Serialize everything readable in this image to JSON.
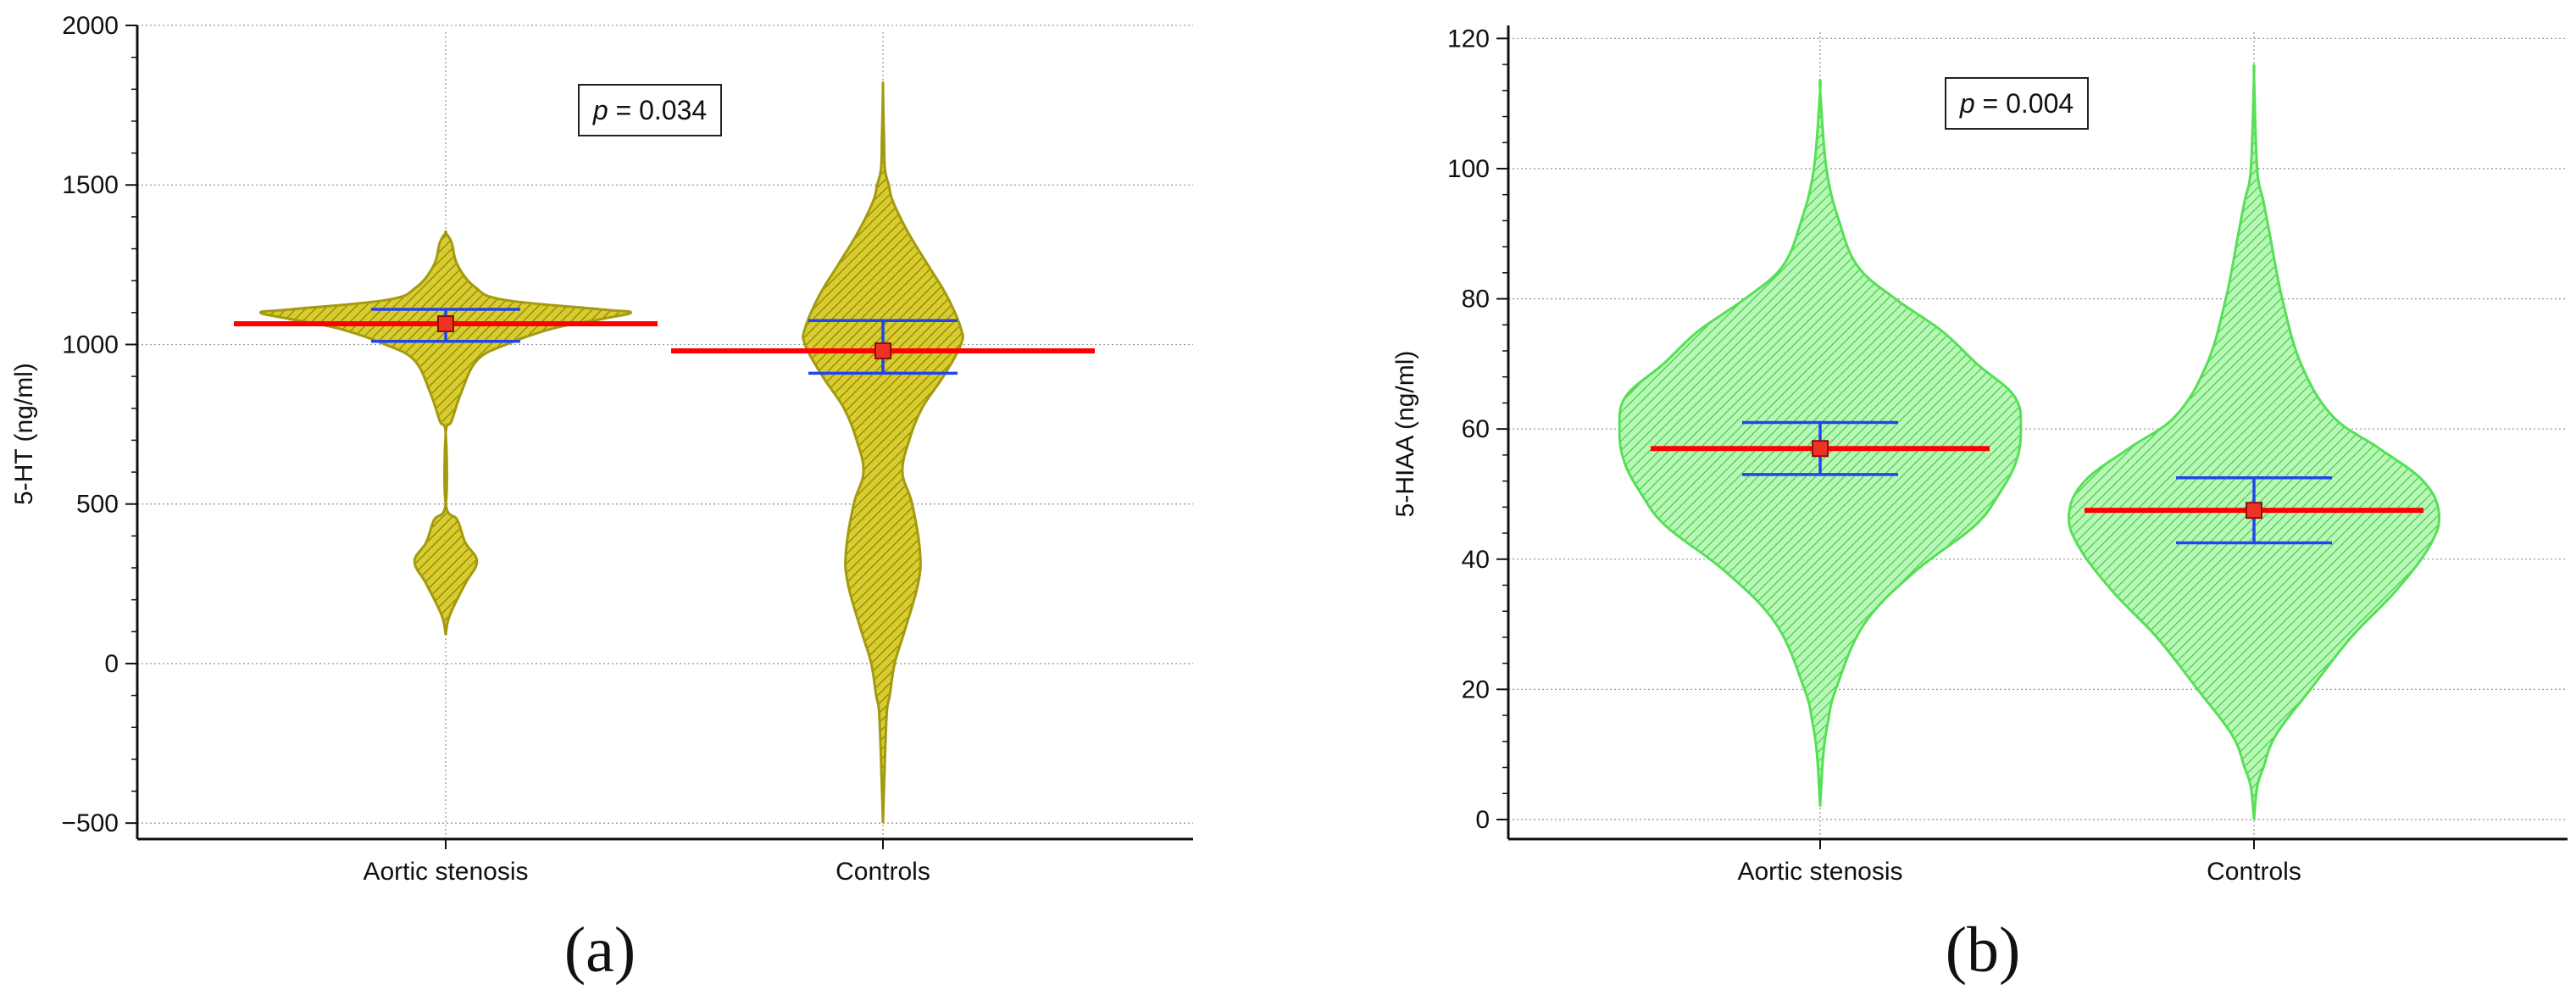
{
  "panels": [
    {
      "label": "(a)",
      "annotation": "p = 0.034",
      "annotation_p": "p",
      "annotation_rest": " = 0.034",
      "colors": {
        "fill": "#d8cc2e",
        "stroke": "#a39a10",
        "hatch": "#8a820a",
        "mean_line": "#ff0000",
        "ci": "#2244ee",
        "marker": "#ee3322"
      }
    },
    {
      "label": "(b)",
      "annotation": "p = 0.004",
      "annotation_p": "p",
      "annotation_rest": " = 0.004",
      "colors": {
        "fill": "#b9f7b9",
        "stroke": "#55e055",
        "hatch": "#3fcf3f",
        "mean_line": "#ff0000",
        "ci": "#2244ee",
        "marker": "#ee3322"
      }
    }
  ],
  "chart_data": [
    {
      "type": "violin",
      "title": "",
      "xlabel": "",
      "ylabel": "5-HT (ng/ml)",
      "categories": [
        "Aortic stenosis",
        "Controls"
      ],
      "ylim": [
        -550,
        2000
      ],
      "yticks": [
        -500,
        0,
        500,
        1000,
        1500,
        2000
      ],
      "ytick_labels": [
        "−500",
        "0",
        "500",
        "1000",
        "1500",
        "2000"
      ],
      "grid": true,
      "series": [
        {
          "category": "Aortic stenosis",
          "mean": 1065,
          "ci": [
            1010,
            1110
          ],
          "range": [
            90,
            1350
          ],
          "density_profile": [
            [
              90,
              0
            ],
            [
              150,
              4
            ],
            [
              250,
              20
            ],
            [
              320,
              32
            ],
            [
              380,
              20
            ],
            [
              450,
              12
            ],
            [
              500,
              0
            ],
            [
              720,
              0
            ],
            [
              760,
              6
            ],
            [
              850,
              16
            ],
            [
              950,
              32
            ],
            [
              1000,
              62
            ],
            [
              1050,
              110
            ],
            [
              1080,
              160
            ],
            [
              1100,
              190
            ],
            [
              1110,
              160
            ],
            [
              1140,
              60
            ],
            [
              1180,
              30
            ],
            [
              1250,
              12
            ],
            [
              1320,
              6
            ],
            [
              1350,
              0
            ]
          ]
        },
        {
          "category": "Controls",
          "mean": 980,
          "ci": [
            910,
            1075
          ],
          "range": [
            -500,
            1800
          ],
          "density_profile": [
            [
              -500,
              0
            ],
            [
              -300,
              2
            ],
            [
              -150,
              4
            ],
            [
              -100,
              7
            ],
            [
              0,
              12
            ],
            [
              100,
              22
            ],
            [
              250,
              36
            ],
            [
              350,
              38
            ],
            [
              500,
              30
            ],
            [
              600,
              20
            ],
            [
              700,
              27
            ],
            [
              800,
              40
            ],
            [
              900,
              62
            ],
            [
              1000,
              80
            ],
            [
              1050,
              80
            ],
            [
              1150,
              66
            ],
            [
              1250,
              46
            ],
            [
              1350,
              26
            ],
            [
              1450,
              10
            ],
            [
              1500,
              6
            ],
            [
              1550,
              2
            ],
            [
              1650,
              1
            ],
            [
              1800,
              0
            ]
          ]
        }
      ]
    },
    {
      "type": "violin",
      "title": "",
      "xlabel": "",
      "ylabel": "5-HIAA (ng/ml)",
      "categories": [
        "Aortic stenosis",
        "Controls"
      ],
      "ylim": [
        -3,
        122
      ],
      "yticks": [
        0,
        20,
        40,
        60,
        80,
        100,
        120
      ],
      "ytick_labels": [
        "0",
        "20",
        "40",
        "60",
        "80",
        "100",
        "120"
      ],
      "grid": true,
      "series": [
        {
          "category": "Aortic stenosis",
          "mean": 57,
          "ci": [
            53,
            61
          ],
          "range": [
            2,
            112
          ],
          "density_profile": [
            [
              2,
              0
            ],
            [
              10,
              2
            ],
            [
              15,
              5
            ],
            [
              20,
              10
            ],
            [
              30,
              28
            ],
            [
              38,
              60
            ],
            [
              45,
              98
            ],
            [
              50,
              114
            ],
            [
              55,
              125
            ],
            [
              60,
              128
            ],
            [
              65,
              124
            ],
            [
              70,
              100
            ],
            [
              75,
              78
            ],
            [
              80,
              48
            ],
            [
              85,
              24
            ],
            [
              92,
              12
            ],
            [
              100,
              4
            ],
            [
              112,
              0
            ]
          ]
        },
        {
          "category": "Controls",
          "mean": 47.5,
          "ci": [
            42.5,
            52.5
          ],
          "range": [
            0,
            114
          ],
          "density_profile": [
            [
              0,
              0
            ],
            [
              5,
              2
            ],
            [
              8,
              6
            ],
            [
              13,
              14
            ],
            [
              20,
              36
            ],
            [
              28,
              62
            ],
            [
              35,
              90
            ],
            [
              42,
              112
            ],
            [
              47,
              118
            ],
            [
              52,
              108
            ],
            [
              57,
              80
            ],
            [
              62,
              50
            ],
            [
              70,
              30
            ],
            [
              80,
              18
            ],
            [
              90,
              10
            ],
            [
              95,
              6
            ],
            [
              100,
              2
            ],
            [
              114,
              0
            ]
          ]
        }
      ]
    }
  ]
}
